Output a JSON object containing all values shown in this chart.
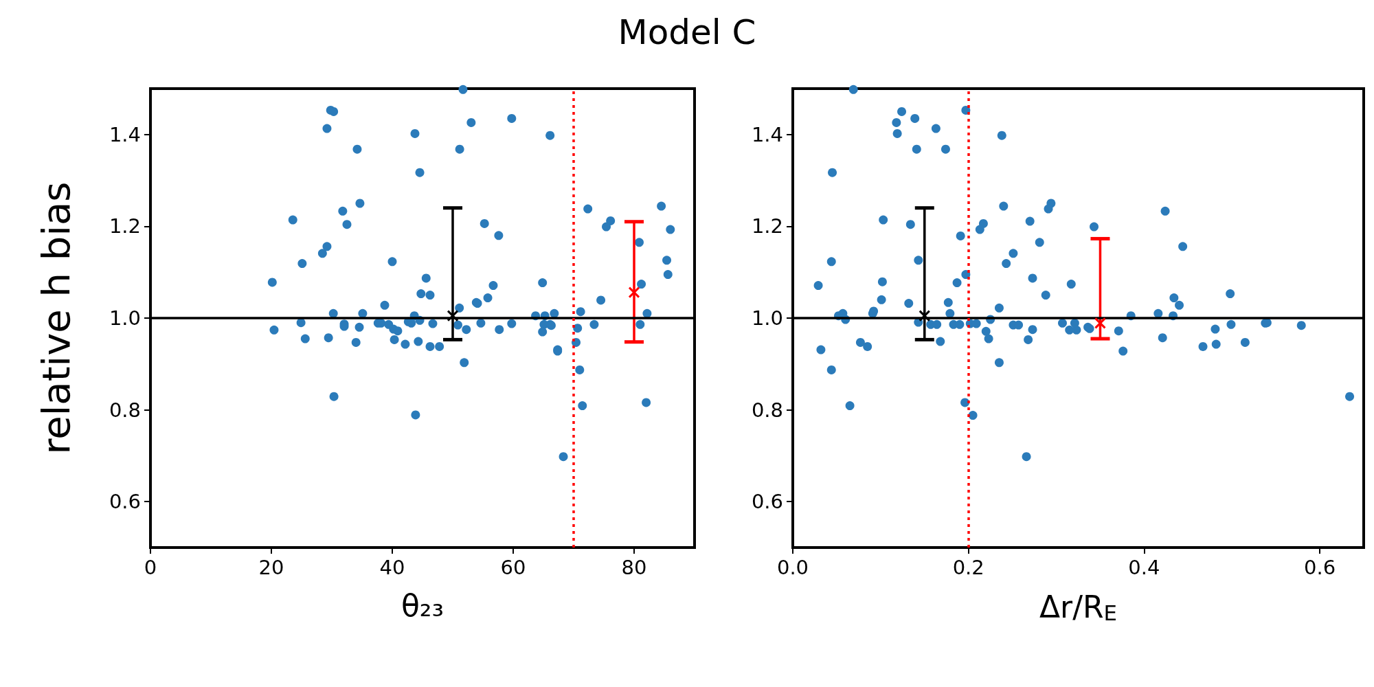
{
  "chart_data": [
    {
      "type": "scatter",
      "title": "Model C",
      "xlabel": "θ₂₃",
      "ylabel": "relative h bias",
      "xlim": [
        0,
        90
      ],
      "ylim": [
        0.5,
        1.5
      ],
      "xticks": [
        0,
        20,
        40,
        60,
        80
      ],
      "yticks": [
        0.6,
        0.8,
        {
          "value": 1,
          "label": "1.0"
        },
        1.2,
        1.4
      ],
      "marker": "circle",
      "grid": false,
      "ref_lines": [
        {
          "axis": "y",
          "value": 1,
          "color": "#000000",
          "line_style": "solid"
        },
        {
          "axis": "x",
          "value": 70,
          "color": "#ff0000",
          "line_style": "dotted"
        }
      ],
      "series": [
        {
          "color": "#2b7bba",
          "x": [
            29.8,
            30.3,
            29.2,
            43.75,
            34.2,
            44.55,
            34.65,
            31.8,
            23.55,
            32.5,
            29.2,
            28.45,
            25.1,
            40.0,
            20.15,
            45.6,
            44.75,
            38.75,
            30.25,
            35.1,
            43.65,
            44.55,
            20.45,
            24.9,
            25.6,
            29.45,
            32.05,
            32.05,
            34.55,
            34.0,
            37.65,
            38.15,
            39.4,
            40.2,
            40.9,
            40.35,
            42.15,
            44.3,
            42.65,
            43.15,
            30.35,
            43.85,
            51.7,
            53.05,
            59.75,
            66.1,
            51.15,
            72.35,
            84.5,
            76.1,
            75.4,
            86.0,
            55.25,
            57.6,
            80.85,
            85.4,
            85.6,
            46.25,
            56.7,
            64.85,
            81.2,
            55.8,
            53.9,
            54.1,
            74.5,
            51.1,
            50.85,
            46.7,
            52.25,
            54.65,
            57.7,
            59.75,
            63.7,
            65.25,
            66.8,
            65.1,
            66.1,
            66.3,
            64.85,
            71.15,
            70.65,
            73.4,
            82.15,
            81.0,
            46.25,
            47.8,
            67.35,
            67.35,
            70.4,
            51.9,
            71.0,
            71.45,
            82.0,
            68.3
          ],
          "values": [
            1.453,
            1.45,
            1.413,
            1.402,
            1.368,
            1.317,
            1.25,
            1.233,
            1.214,
            1.204,
            1.156,
            1.141,
            1.119,
            1.123,
            1.078,
            1.087,
            1.053,
            1.028,
            1.01,
            1.01,
            1.005,
            0.995,
            0.974,
            0.99,
            0.955,
            0.957,
            0.987,
            0.982,
            0.98,
            0.947,
            0.989,
            0.989,
            0.986,
            0.976,
            0.972,
            0.953,
            0.943,
            0.949,
            0.992,
            0.989,
            0.829,
            0.789,
            1.498,
            1.426,
            1.435,
            1.398,
            1.368,
            1.238,
            1.244,
            1.212,
            1.199,
            1.193,
            1.206,
            1.18,
            1.165,
            1.126,
            1.095,
            1.05,
            1.071,
            1.077,
            1.074,
            1.044,
            1.034,
            1.032,
            1.039,
            1.022,
            0.985,
            0.988,
            0.975,
            0.989,
            0.975,
            0.988,
            1.005,
            1.005,
            1.01,
            0.986,
            0.986,
            0.984,
            0.97,
            1.014,
            0.978,
            0.986,
            1.01,
            0.986,
            0.938,
            0.938,
            0.931,
            0.928,
            0.947,
            0.903,
            0.887,
            0.809,
            0.816,
            0.698
          ]
        },
        {
          "color": "#000000",
          "marker": "cross",
          "x": [
            50
          ],
          "values": [
            1.005
          ],
          "errors": [
            [
              0.953,
              1.24
            ]
          ]
        },
        {
          "color": "#ff0000",
          "marker": "cross",
          "x": [
            80
          ],
          "values": [
            1.056
          ],
          "errors": [
            [
              0.948,
              1.21
            ]
          ]
        }
      ]
    },
    {
      "type": "scatter",
      "xlabel": "Δr/R$_{E}$",
      "xlim": [
        0,
        0.65
      ],
      "ylim": [
        0.5,
        1.5
      ],
      "xticks": [
        {
          "value": 0,
          "label": "0.0"
        },
        0.2,
        0.4,
        0.6
      ],
      "yticks": [
        0.6,
        0.8,
        {
          "value": 1,
          "label": "1.0"
        },
        1.2,
        1.4
      ],
      "marker": "circle",
      "grid": false,
      "ref_lines": [
        {
          "axis": "y",
          "value": 1,
          "color": "#000000",
          "line_style": "solid"
        },
        {
          "axis": "x",
          "value": 0.2,
          "color": "#ff0000",
          "line_style": "dotted"
        }
      ],
      "series": [
        {
          "color": "#2b7bba",
          "x": [
            0.069,
            0.124,
            0.197,
            0.118,
            0.139,
            0.163,
            0.119,
            0.238,
            0.141,
            0.174,
            0.045,
            0.24,
            0.294,
            0.291,
            0.103,
            0.134,
            0.27,
            0.217,
            0.213,
            0.191,
            0.281,
            0.251,
            0.243,
            0.044,
            0.143,
            0.197,
            0.187,
            0.273,
            0.029,
            0.102,
            0.317,
            0.288,
            0.101,
            0.132,
            0.177,
            0.235,
            0.179,
            0.052,
            0.057,
            0.06,
            0.091,
            0.092,
            0.143,
            0.157,
            0.164,
            0.183,
            0.19,
            0.202,
            0.209,
            0.225,
            0.22,
            0.223,
            0.168,
            0.251,
            0.257,
            0.273,
            0.268,
            0.235,
            0.307,
            0.315,
            0.323,
            0.321,
            0.032,
            0.044,
            0.077,
            0.085,
            0.065,
            0.196,
            0.205,
            0.266,
            0.343,
            0.424,
            0.444,
            0.434,
            0.44,
            0.498,
            0.385,
            0.416,
            0.433,
            0.336,
            0.338,
            0.371,
            0.376,
            0.421,
            0.467,
            0.481,
            0.482,
            0.499,
            0.515,
            0.538,
            0.54,
            0.579,
            0.634
          ],
          "values": [
            1.498,
            1.45,
            1.453,
            1.426,
            1.435,
            1.413,
            1.402,
            1.398,
            1.368,
            1.368,
            1.317,
            1.244,
            1.25,
            1.238,
            1.214,
            1.204,
            1.211,
            1.206,
            1.193,
            1.179,
            1.165,
            1.141,
            1.119,
            1.123,
            1.126,
            1.095,
            1.077,
            1.087,
            1.071,
            1.079,
            1.074,
            1.05,
            1.04,
            1.032,
            1.034,
            1.022,
            1.01,
            1.005,
            1.01,
            0.997,
            1.01,
            1.015,
            0.991,
            0.986,
            0.986,
            0.986,
            0.986,
            0.988,
            0.988,
            0.997,
            0.971,
            0.955,
            0.949,
            0.985,
            0.985,
            0.975,
            0.953,
            0.903,
            0.989,
            0.974,
            0.974,
            0.989,
            0.931,
            0.887,
            0.947,
            0.938,
            0.809,
            0.816,
            0.788,
            0.698,
            1.199,
            1.233,
            1.156,
            1.044,
            1.028,
            1.053,
            1.005,
            1.01,
            1.005,
            0.98,
            0.977,
            0.972,
            0.928,
            0.957,
            0.938,
            0.976,
            0.943,
            0.986,
            0.947,
            0.989,
            0.99,
            0.984,
            0.829
          ]
        },
        {
          "color": "#000000",
          "marker": "cross",
          "x": [
            0.15
          ],
          "values": [
            1.005
          ],
          "errors": [
            [
              0.953,
              1.24
            ]
          ]
        },
        {
          "color": "#ff0000",
          "marker": "cross",
          "x": [
            0.35
          ],
          "values": [
            0.989
          ],
          "errors": [
            [
              0.955,
              1.173
            ]
          ]
        }
      ]
    }
  ]
}
